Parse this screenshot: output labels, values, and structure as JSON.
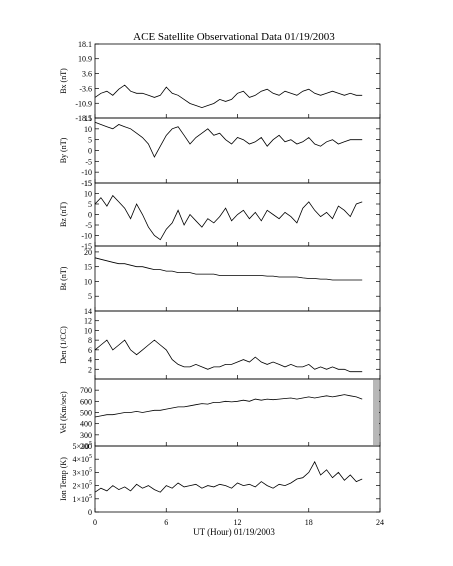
{
  "chart_data": [
    {
      "type": "line",
      "panel": "bx",
      "ylabel": "Bx (nT)",
      "ylim": [
        -18.1,
        18.1
      ],
      "yticks": [
        "18.1",
        "10.9",
        "3.6",
        "-3.6",
        "-10.9",
        "-18.1"
      ],
      "ytick_values": [
        18.1,
        10.9,
        3.6,
        -3.6,
        -10.9,
        -18.1
      ],
      "x": [
        0,
        0.5,
        1,
        1.5,
        2,
        2.5,
        3,
        3.5,
        4,
        4.5,
        5,
        5.5,
        6,
        6.5,
        7,
        7.5,
        8,
        8.5,
        9,
        9.5,
        10,
        10.5,
        11,
        11.5,
        12,
        12.5,
        13,
        13.5,
        14,
        14.5,
        15,
        15.5,
        16,
        16.5,
        17,
        17.5,
        18,
        18.5,
        19,
        19.5,
        20,
        20.5,
        21,
        21.5,
        22,
        22.5
      ],
      "values": [
        -8,
        -6,
        -5,
        -7,
        -4,
        -2,
        -5,
        -6,
        -6,
        -7,
        -8,
        -7,
        -3,
        -6,
        -7,
        -9,
        -11,
        -12,
        -13,
        -12,
        -11,
        -9,
        -10,
        -9,
        -6,
        -5,
        -8,
        -7,
        -5,
        -4,
        -6,
        -7,
        -5,
        -6,
        -7,
        -5,
        -4,
        -6,
        -7,
        -6,
        -5,
        -6,
        -7,
        -6,
        -7,
        -7
      ]
    },
    {
      "type": "line",
      "panel": "by",
      "ylabel": "By (nT)",
      "ylim": [
        -15,
        15
      ],
      "yticks": [
        "15",
        "10",
        "5",
        "0",
        "-5",
        "-10",
        "-15"
      ],
      "ytick_values": [
        15,
        10,
        5,
        0,
        -5,
        -10,
        -15
      ],
      "x": [
        0,
        0.5,
        1,
        1.5,
        2,
        2.5,
        3,
        3.5,
        4,
        4.5,
        5,
        5.5,
        6,
        6.5,
        7,
        7.5,
        8,
        8.5,
        9,
        9.5,
        10,
        10.5,
        11,
        11.5,
        12,
        12.5,
        13,
        13.5,
        14,
        14.5,
        15,
        15.5,
        16,
        16.5,
        17,
        17.5,
        18,
        18.5,
        19,
        19.5,
        20,
        20.5,
        21,
        21.5,
        22,
        22.5
      ],
      "values": [
        13,
        12,
        11,
        10,
        12,
        11,
        10,
        8,
        6,
        3,
        -3,
        2,
        7,
        10,
        11,
        7,
        3,
        6,
        8,
        10,
        7,
        8,
        5,
        3,
        6,
        5,
        3,
        4,
        6,
        2,
        5,
        7,
        4,
        5,
        3,
        4,
        6,
        3,
        2,
        4,
        5,
        3,
        4,
        5,
        5,
        5
      ]
    },
    {
      "type": "line",
      "panel": "bz",
      "ylabel": "Bz (nT)",
      "ylim": [
        -15,
        15
      ],
      "yticks": [
        "15",
        "10",
        "5",
        "0",
        "-5",
        "-10",
        "-15"
      ],
      "ytick_values": [
        15,
        10,
        5,
        0,
        -5,
        -10,
        -15
      ],
      "x": [
        0,
        0.5,
        1,
        1.5,
        2,
        2.5,
        3,
        3.5,
        4,
        4.5,
        5,
        5.5,
        6,
        6.5,
        7,
        7.5,
        8,
        8.5,
        9,
        9.5,
        10,
        10.5,
        11,
        11.5,
        12,
        12.5,
        13,
        13.5,
        14,
        14.5,
        15,
        15.5,
        16,
        16.5,
        17,
        17.5,
        18,
        18.5,
        19,
        19.5,
        20,
        20.5,
        21,
        21.5,
        22,
        22.5
      ],
      "values": [
        5,
        8,
        4,
        9,
        6,
        3,
        -2,
        5,
        0,
        -6,
        -10,
        -12,
        -7,
        -4,
        2,
        -5,
        0,
        -3,
        -6,
        -2,
        -4,
        -1,
        3,
        -3,
        0,
        2,
        -2,
        1,
        -3,
        2,
        0,
        -2,
        1,
        -1,
        -4,
        3,
        6,
        2,
        -1,
        1,
        -2,
        4,
        2,
        -1,
        5,
        6
      ]
    },
    {
      "type": "line",
      "panel": "bt",
      "ylabel": "Bt (nT)",
      "ylim": [
        0,
        22
      ],
      "yticks": [
        "20",
        "15",
        "10",
        "5"
      ],
      "ytick_values": [
        20,
        15,
        10,
        5
      ],
      "x": [
        0,
        0.5,
        1,
        1.5,
        2,
        2.5,
        3,
        3.5,
        4,
        4.5,
        5,
        5.5,
        6,
        6.5,
        7,
        7.5,
        8,
        8.5,
        9,
        9.5,
        10,
        10.5,
        11,
        11.5,
        12,
        12.5,
        13,
        13.5,
        14,
        14.5,
        15,
        15.5,
        16,
        16.5,
        17,
        17.5,
        18,
        18.5,
        19,
        19.5,
        20,
        20.5,
        21,
        21.5,
        22,
        22.5
      ],
      "values": [
        18,
        17.5,
        17,
        16.5,
        16,
        16,
        15.5,
        15,
        15,
        14.5,
        14,
        14,
        13.5,
        13.5,
        13,
        13,
        13,
        12.5,
        12.5,
        12.5,
        12.5,
        12,
        12,
        12,
        12,
        12,
        12,
        12,
        12,
        11.8,
        11.8,
        11.5,
        11.5,
        11.5,
        11.5,
        11.2,
        11,
        11,
        10.8,
        10.8,
        10.5,
        10.5,
        10.5,
        10.5,
        10.5,
        10.5
      ]
    },
    {
      "type": "line",
      "panel": "den",
      "ylabel": "Den (1/CC)",
      "ylim": [
        0,
        14
      ],
      "yticks": [
        "14",
        "12",
        "10",
        "8",
        "6",
        "4",
        "2"
      ],
      "ytick_values": [
        14,
        12,
        10,
        8,
        6,
        4,
        2
      ],
      "x": [
        0,
        0.5,
        1,
        1.5,
        2,
        2.5,
        3,
        3.5,
        4,
        4.5,
        5,
        5.5,
        6,
        6.5,
        7,
        7.5,
        8,
        8.5,
        9,
        9.5,
        10,
        10.5,
        11,
        11.5,
        12,
        12.5,
        13,
        13.5,
        14,
        14.5,
        15,
        15.5,
        16,
        16.5,
        17,
        17.5,
        18,
        18.5,
        19,
        19.5,
        20,
        20.5,
        21,
        21.5,
        22,
        22.5
      ],
      "values": [
        6,
        7,
        8,
        6,
        7,
        8,
        6,
        5,
        6,
        7,
        8,
        7,
        6,
        4,
        3,
        2.5,
        2.5,
        3,
        2.5,
        2,
        2.5,
        2.5,
        3,
        3,
        3.5,
        4,
        3.5,
        4.5,
        3.5,
        3,
        3.5,
        3,
        2.5,
        3,
        2.5,
        2.5,
        3,
        2,
        2.5,
        2,
        2.5,
        2,
        2,
        1.5,
        1.5,
        1.5
      ]
    },
    {
      "type": "line",
      "panel": "vel",
      "ylabel": "Vel (Km/sec)",
      "ylim": [
        200,
        800
      ],
      "yticks": [
        "700",
        "600",
        "500",
        "400",
        "300",
        "200"
      ],
      "ytick_values": [
        700,
        600,
        500,
        400,
        300,
        200
      ],
      "x": [
        0,
        0.5,
        1,
        1.5,
        2,
        2.5,
        3,
        3.5,
        4,
        4.5,
        5,
        5.5,
        6,
        6.5,
        7,
        7.5,
        8,
        8.5,
        9,
        9.5,
        10,
        10.5,
        11,
        11.5,
        12,
        12.5,
        13,
        13.5,
        14,
        14.5,
        15,
        15.5,
        16,
        16.5,
        17,
        17.5,
        18,
        18.5,
        19,
        19.5,
        20,
        20.5,
        21,
        21.5,
        22,
        22.5
      ],
      "values": [
        460,
        470,
        480,
        480,
        490,
        500,
        500,
        510,
        500,
        510,
        520,
        520,
        530,
        540,
        550,
        550,
        560,
        570,
        580,
        575,
        590,
        590,
        600,
        595,
        600,
        610,
        600,
        620,
        610,
        620,
        615,
        620,
        625,
        630,
        620,
        630,
        640,
        630,
        640,
        650,
        640,
        650,
        660,
        650,
        640,
        620
      ]
    },
    {
      "type": "line",
      "panel": "temp",
      "ylabel": "Ion Temp (K)",
      "ylim": [
        0,
        500000
      ],
      "yticks": [
        "5×10",
        "4×10",
        "3×10",
        "2×10",
        "1×10",
        "0"
      ],
      "ytick_exp": "5",
      "ytick_values": [
        500000,
        400000,
        300000,
        200000,
        100000,
        0
      ],
      "x": [
        0,
        0.5,
        1,
        1.5,
        2,
        2.5,
        3,
        3.5,
        4,
        4.5,
        5,
        5.5,
        6,
        6.5,
        7,
        7.5,
        8,
        8.5,
        9,
        9.5,
        10,
        10.5,
        11,
        11.5,
        12,
        12.5,
        13,
        13.5,
        14,
        14.5,
        15,
        15.5,
        16,
        16.5,
        17,
        17.5,
        18,
        18.5,
        19,
        19.5,
        20,
        20.5,
        21,
        21.5,
        22,
        22.5
      ],
      "values": [
        150000,
        180000,
        160000,
        200000,
        170000,
        190000,
        160000,
        210000,
        180000,
        200000,
        170000,
        150000,
        200000,
        180000,
        220000,
        190000,
        200000,
        210000,
        180000,
        200000,
        190000,
        210000,
        200000,
        180000,
        220000,
        200000,
        210000,
        190000,
        230000,
        200000,
        180000,
        210000,
        200000,
        220000,
        250000,
        260000,
        300000,
        380000,
        280000,
        320000,
        260000,
        300000,
        240000,
        280000,
        230000,
        250000
      ]
    }
  ],
  "title": "ACE Satellite Observational Data   01/19/2003",
  "xlabel": "UT (Hour)   01/19/2003",
  "xticks": [
    "0",
    "6",
    "12",
    "18",
    "24"
  ],
  "xtick_values": [
    0,
    6,
    12,
    18,
    24
  ],
  "xlim": [
    0,
    24
  ],
  "colors": {
    "line": "#000000",
    "missing": "#b8b8b8"
  }
}
